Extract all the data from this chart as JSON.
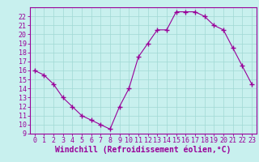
{
  "x": [
    0,
    1,
    2,
    3,
    4,
    5,
    6,
    7,
    8,
    9,
    10,
    11,
    12,
    13,
    14,
    15,
    16,
    17,
    18,
    19,
    20,
    21,
    22,
    23
  ],
  "y": [
    16,
    15.5,
    14.5,
    13,
    12,
    11,
    10.5,
    10,
    9.5,
    12,
    14,
    17.5,
    19,
    20.5,
    20.5,
    22.5,
    22.5,
    22.5,
    22,
    21,
    20.5,
    18.5,
    16.5,
    14.5
  ],
  "line_color": "#990099",
  "marker": "+",
  "marker_size": 4,
  "bg_color": "#c8f0ee",
  "grid_color": "#a0d8d4",
  "xlabel": "Windchill (Refroidissement éolien,°C)",
  "xlabel_fontsize": 7,
  "tick_fontsize": 6,
  "xlim": [
    -0.5,
    23.5
  ],
  "ylim": [
    9,
    23
  ],
  "yticks": [
    9,
    10,
    11,
    12,
    13,
    14,
    15,
    16,
    17,
    18,
    19,
    20,
    21,
    22
  ],
  "xticks": [
    0,
    1,
    2,
    3,
    4,
    5,
    6,
    7,
    8,
    9,
    10,
    11,
    12,
    13,
    14,
    15,
    16,
    17,
    18,
    19,
    20,
    21,
    22,
    23
  ]
}
